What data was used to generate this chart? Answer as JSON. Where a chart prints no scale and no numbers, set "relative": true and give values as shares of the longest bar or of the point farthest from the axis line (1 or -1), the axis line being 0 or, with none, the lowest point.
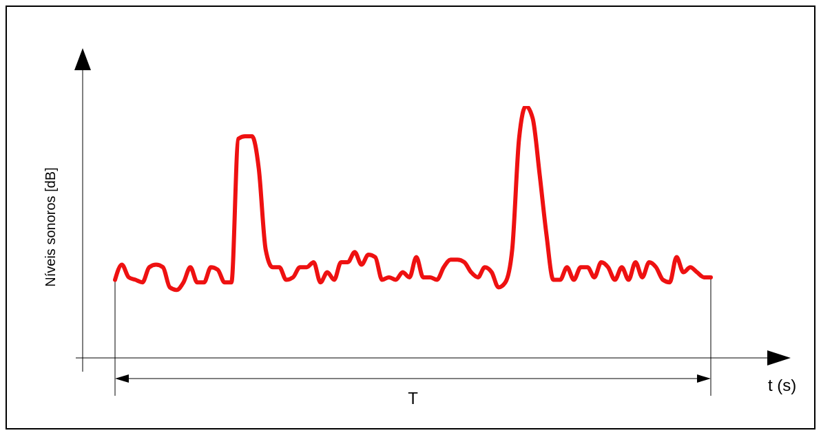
{
  "chart_data": {
    "type": "line",
    "xlabel": "t (s)",
    "ylabel": "Níveis sonoros [dB]",
    "annotations": [
      "T"
    ],
    "relative": true,
    "color": "#ee1111",
    "line_style": "solid",
    "marker": "none",
    "categories": [
      null,
      null,
      null,
      null,
      null,
      null,
      null,
      null,
      null,
      null,
      null,
      null,
      null,
      null,
      null,
      null,
      null,
      null,
      null,
      null,
      null,
      null,
      null,
      null,
      null,
      null,
      null,
      null,
      null,
      null,
      null,
      null,
      null,
      null,
      null,
      null,
      null,
      null,
      null,
      null,
      null,
      null,
      null,
      null,
      null,
      null,
      null,
      null,
      null,
      null,
      null,
      null,
      null,
      null,
      null,
      null,
      null,
      null,
      null,
      null,
      null,
      null,
      null,
      null,
      null,
      null,
      null,
      null,
      null,
      null,
      null,
      null,
      null,
      null,
      null,
      null,
      null,
      null,
      null,
      null,
      null,
      null,
      null,
      null,
      null,
      null,
      null,
      null
    ],
    "values": [
      0.31,
      0.37,
      0.32,
      0.31,
      0.3,
      0.36,
      0.37,
      0.36,
      0.28,
      0.27,
      0.3,
      0.36,
      0.3,
      0.3,
      0.36,
      0.35,
      0.3,
      0.3,
      0.87,
      0.88,
      0.88,
      0.75,
      0.43,
      0.36,
      0.36,
      0.31,
      0.32,
      0.36,
      0.36,
      0.38,
      0.3,
      0.34,
      0.31,
      0.38,
      0.38,
      0.42,
      0.37,
      0.41,
      0.4,
      0.31,
      0.32,
      0.31,
      0.34,
      0.32,
      0.4,
      0.32,
      0.32,
      0.31,
      0.36,
      0.39,
      0.39,
      0.38,
      0.34,
      0.32,
      0.36,
      0.34,
      0.28,
      0.3,
      0.43,
      0.87,
      1,
      0.95,
      0.73,
      0.49,
      0.31,
      0.31,
      0.36,
      0.31,
      0.36,
      0.36,
      0.32,
      0.38,
      0.36,
      0.31,
      0.36,
      0.31,
      0.38,
      0.32,
      0.38,
      0.36,
      0.31,
      0.3,
      0.4,
      0.34,
      0.36,
      0.34,
      0.32,
      0.32
    ]
  }
}
